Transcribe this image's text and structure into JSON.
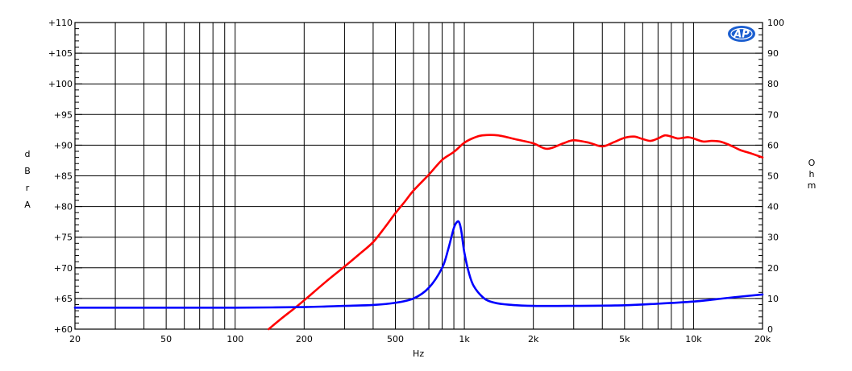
{
  "chart_data": {
    "type": "line",
    "x_scale": "log",
    "xlim": [
      20,
      20000
    ],
    "xlabel": "Hz",
    "x_ticks": [
      {
        "value": 20,
        "label": "20"
      },
      {
        "value": 50,
        "label": "50"
      },
      {
        "value": 100,
        "label": "100"
      },
      {
        "value": 200,
        "label": "200"
      },
      {
        "value": 500,
        "label": "500"
      },
      {
        "value": 1000,
        "label": "1k"
      },
      {
        "value": 2000,
        "label": "2k"
      },
      {
        "value": 5000,
        "label": "5k"
      },
      {
        "value": 10000,
        "label": "10k"
      },
      {
        "value": 20000,
        "label": "20k"
      }
    ],
    "left_axis": {
      "label_letters": [
        "d",
        "B",
        "r",
        "A"
      ],
      "ylim": [
        60,
        110
      ],
      "ticks": [
        {
          "value": 60,
          "label": "+60"
        },
        {
          "value": 65,
          "label": "+65"
        },
        {
          "value": 70,
          "label": "+70"
        },
        {
          "value": 75,
          "label": "+75"
        },
        {
          "value": 80,
          "label": "+80"
        },
        {
          "value": 85,
          "label": "+85"
        },
        {
          "value": 90,
          "label": "+90"
        },
        {
          "value": 95,
          "label": "+95"
        },
        {
          "value": 100,
          "label": "+100"
        },
        {
          "value": 105,
          "label": "+105"
        },
        {
          "value": 110,
          "label": "+110"
        }
      ]
    },
    "right_axis": {
      "label_letters": [
        "O",
        "h",
        "m"
      ],
      "ylim": [
        0,
        100
      ],
      "ticks": [
        {
          "value": 0,
          "label": "0"
        },
        {
          "value": 10,
          "label": "10"
        },
        {
          "value": 20,
          "label": "20"
        },
        {
          "value": 30,
          "label": "30"
        },
        {
          "value": 40,
          "label": "40"
        },
        {
          "value": 50,
          "label": "50"
        },
        {
          "value": 60,
          "label": "60"
        },
        {
          "value": 70,
          "label": "70"
        },
        {
          "value": 80,
          "label": "80"
        },
        {
          "value": 90,
          "label": "90"
        },
        {
          "value": 100,
          "label": "100"
        }
      ]
    },
    "grid": true,
    "series": [
      {
        "axis": "left",
        "color": "#ff0000",
        "x": [
          140,
          160,
          180,
          200,
          250,
          300,
          350,
          400,
          450,
          500,
          550,
          600,
          700,
          800,
          900,
          1000,
          1100,
          1200,
          1400,
          1700,
          2000,
          2300,
          2700,
          3000,
          3500,
          4000,
          4500,
          5000,
          5500,
          6000,
          6500,
          7000,
          7500,
          8000,
          8500,
          9000,
          9500,
          10000,
          11000,
          12000,
          13000,
          14000,
          15000,
          16000,
          18000,
          20000
        ],
        "y": [
          60.0,
          61.8,
          63.3,
          64.7,
          67.8,
          70.2,
          72.3,
          74.2,
          76.6,
          78.9,
          80.8,
          82.6,
          85.2,
          87.6,
          88.9,
          90.4,
          91.2,
          91.6,
          91.6,
          90.9,
          90.3,
          89.4,
          90.3,
          90.8,
          90.4,
          89.8,
          90.5,
          91.2,
          91.4,
          91.0,
          90.7,
          91.1,
          91.6,
          91.4,
          91.1,
          91.2,
          91.3,
          91.1,
          90.6,
          90.7,
          90.6,
          90.2,
          89.7,
          89.2,
          88.6,
          88.0
        ]
      },
      {
        "axis": "right",
        "color": "#0000ff",
        "x": [
          20,
          50,
          100,
          150,
          200,
          250,
          300,
          400,
          500,
          600,
          700,
          800,
          850,
          900,
          930,
          950,
          970,
          1000,
          1050,
          1100,
          1200,
          1300,
          1500,
          2000,
          3000,
          5000,
          7000,
          10000,
          12000,
          15000,
          20000
        ],
        "y": [
          7.0,
          7.0,
          7.0,
          7.1,
          7.2,
          7.4,
          7.6,
          7.9,
          8.6,
          10.0,
          13.5,
          20.0,
          26.0,
          33.0,
          35.0,
          34.8,
          32.0,
          25.0,
          18.0,
          14.0,
          10.5,
          9.0,
          8.1,
          7.6,
          7.6,
          7.8,
          8.3,
          9.0,
          9.6,
          10.4,
          11.3
        ]
      }
    ]
  }
}
